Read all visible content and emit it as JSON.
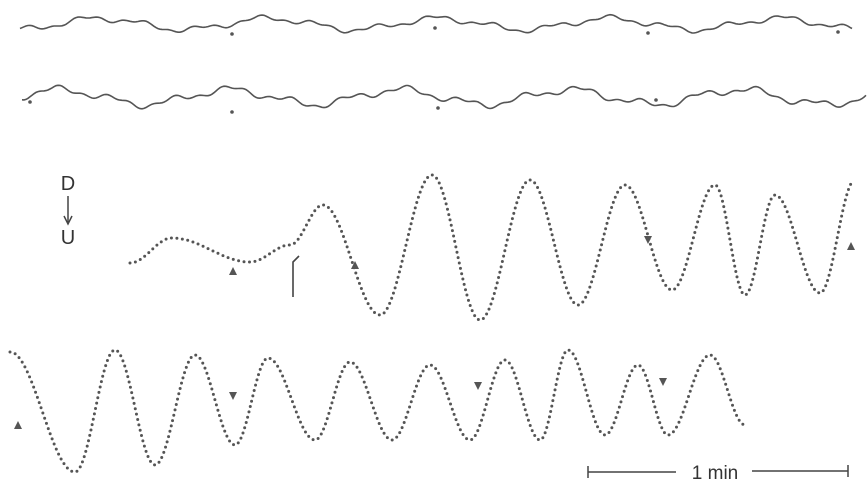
{
  "orientation": {
    "top": "D",
    "bottom": "U"
  },
  "scale_bar": {
    "label": "1 min"
  }
}
